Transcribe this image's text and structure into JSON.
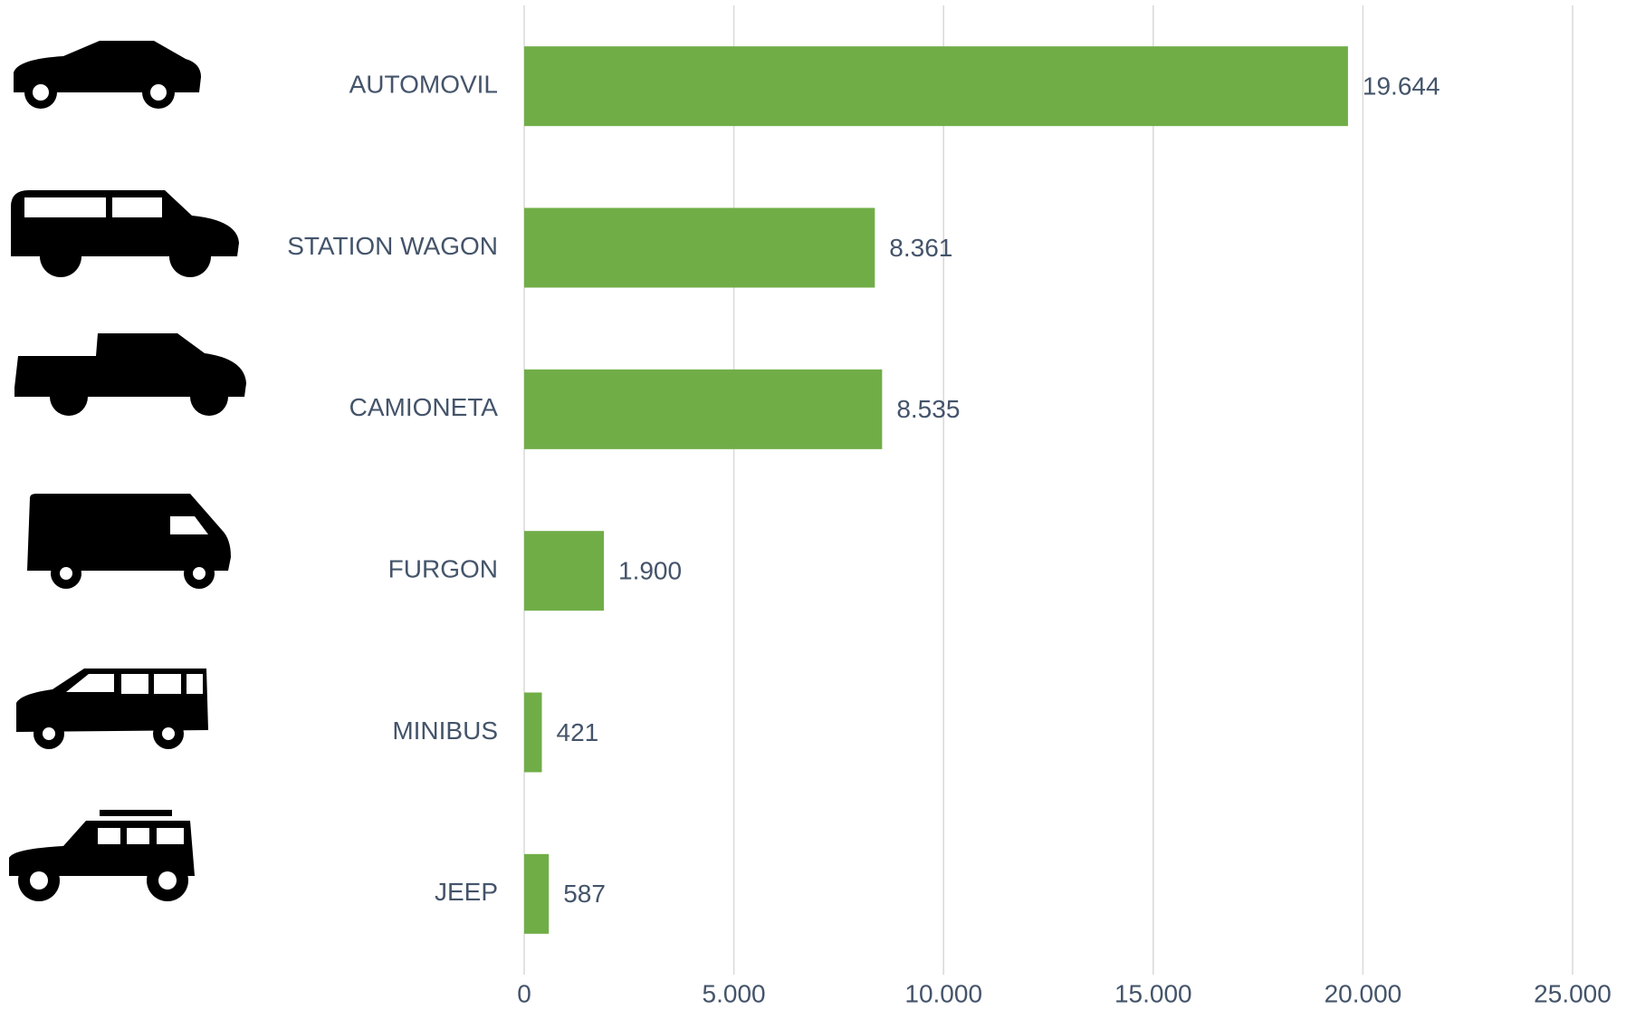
{
  "chart_data": {
    "type": "hbar",
    "categories": [
      "AUTOMOVIL",
      "STATION WAGON",
      "CAMIONETA",
      "FURGON",
      "MINIBUS",
      "JEEP"
    ],
    "values": [
      19644,
      8361,
      8535,
      1900,
      421,
      587
    ],
    "value_labels": [
      "19.644",
      "8.361",
      "8.535",
      "1.900",
      "421",
      "587"
    ],
    "color": "#70ad47",
    "xlim": [
      0,
      25000
    ],
    "xticks": [
      0,
      {
        "value": 5000,
        "label": "5.000"
      },
      {
        "value": 10000,
        "label": "10.000"
      },
      {
        "value": 15000,
        "label": "15.000"
      },
      {
        "value": 20000,
        "label": "20.000"
      },
      {
        "value": 25000,
        "label": "25.000"
      }
    ],
    "grid": true
  }
}
